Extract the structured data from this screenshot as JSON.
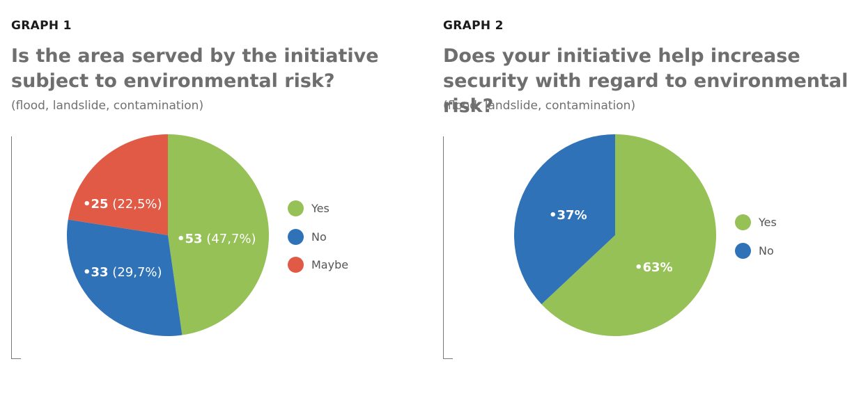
{
  "colors": {
    "yes": "#96c156",
    "no": "#2f72b8",
    "maybe": "#e15a45"
  },
  "graphs": [
    {
      "label": "GRAPH 1",
      "title": "Is the area served by the initiative subject to environmental risk?",
      "subtitle": "(flood, landslide, contamination)",
      "legend": [
        "Yes",
        "No",
        "Maybe"
      ]
    },
    {
      "label": "GRAPH 2",
      "title": "Does your initiative help increase security with regard to environmental risk?",
      "subtitle": "(flood, landslide, contamination)",
      "legend": [
        "Yes",
        "No"
      ]
    }
  ],
  "chart_data": [
    {
      "type": "pie",
      "title": "Is the area served by the initiative subject to environmental risk?",
      "subtitle": "(flood, landslide, contamination)",
      "categories": [
        "Yes",
        "No",
        "Maybe"
      ],
      "values": [
        53,
        33,
        25
      ],
      "percent_labels": [
        "47,7%",
        "29,7%",
        "22,5%"
      ],
      "slice_labels": [
        {
          "num": "53",
          "pct": "(47,7%)"
        },
        {
          "num": "33",
          "pct": "(29,7%)"
        },
        {
          "num": "25",
          "pct": "(22,5%)"
        }
      ],
      "colors": [
        "#96c156",
        "#2f72b8",
        "#e15a45"
      ],
      "legend_position": "right"
    },
    {
      "type": "pie",
      "title": "Does your initiative help increase security with regard to environmental risk?",
      "subtitle": "(flood, landslide, contamination)",
      "categories": [
        "Yes",
        "No"
      ],
      "values": [
        63,
        37
      ],
      "slice_labels": [
        {
          "num": "63%",
          "pct": ""
        },
        {
          "num": "37%",
          "pct": ""
        }
      ],
      "colors": [
        "#96c156",
        "#2f72b8"
      ],
      "legend_position": "right"
    }
  ]
}
